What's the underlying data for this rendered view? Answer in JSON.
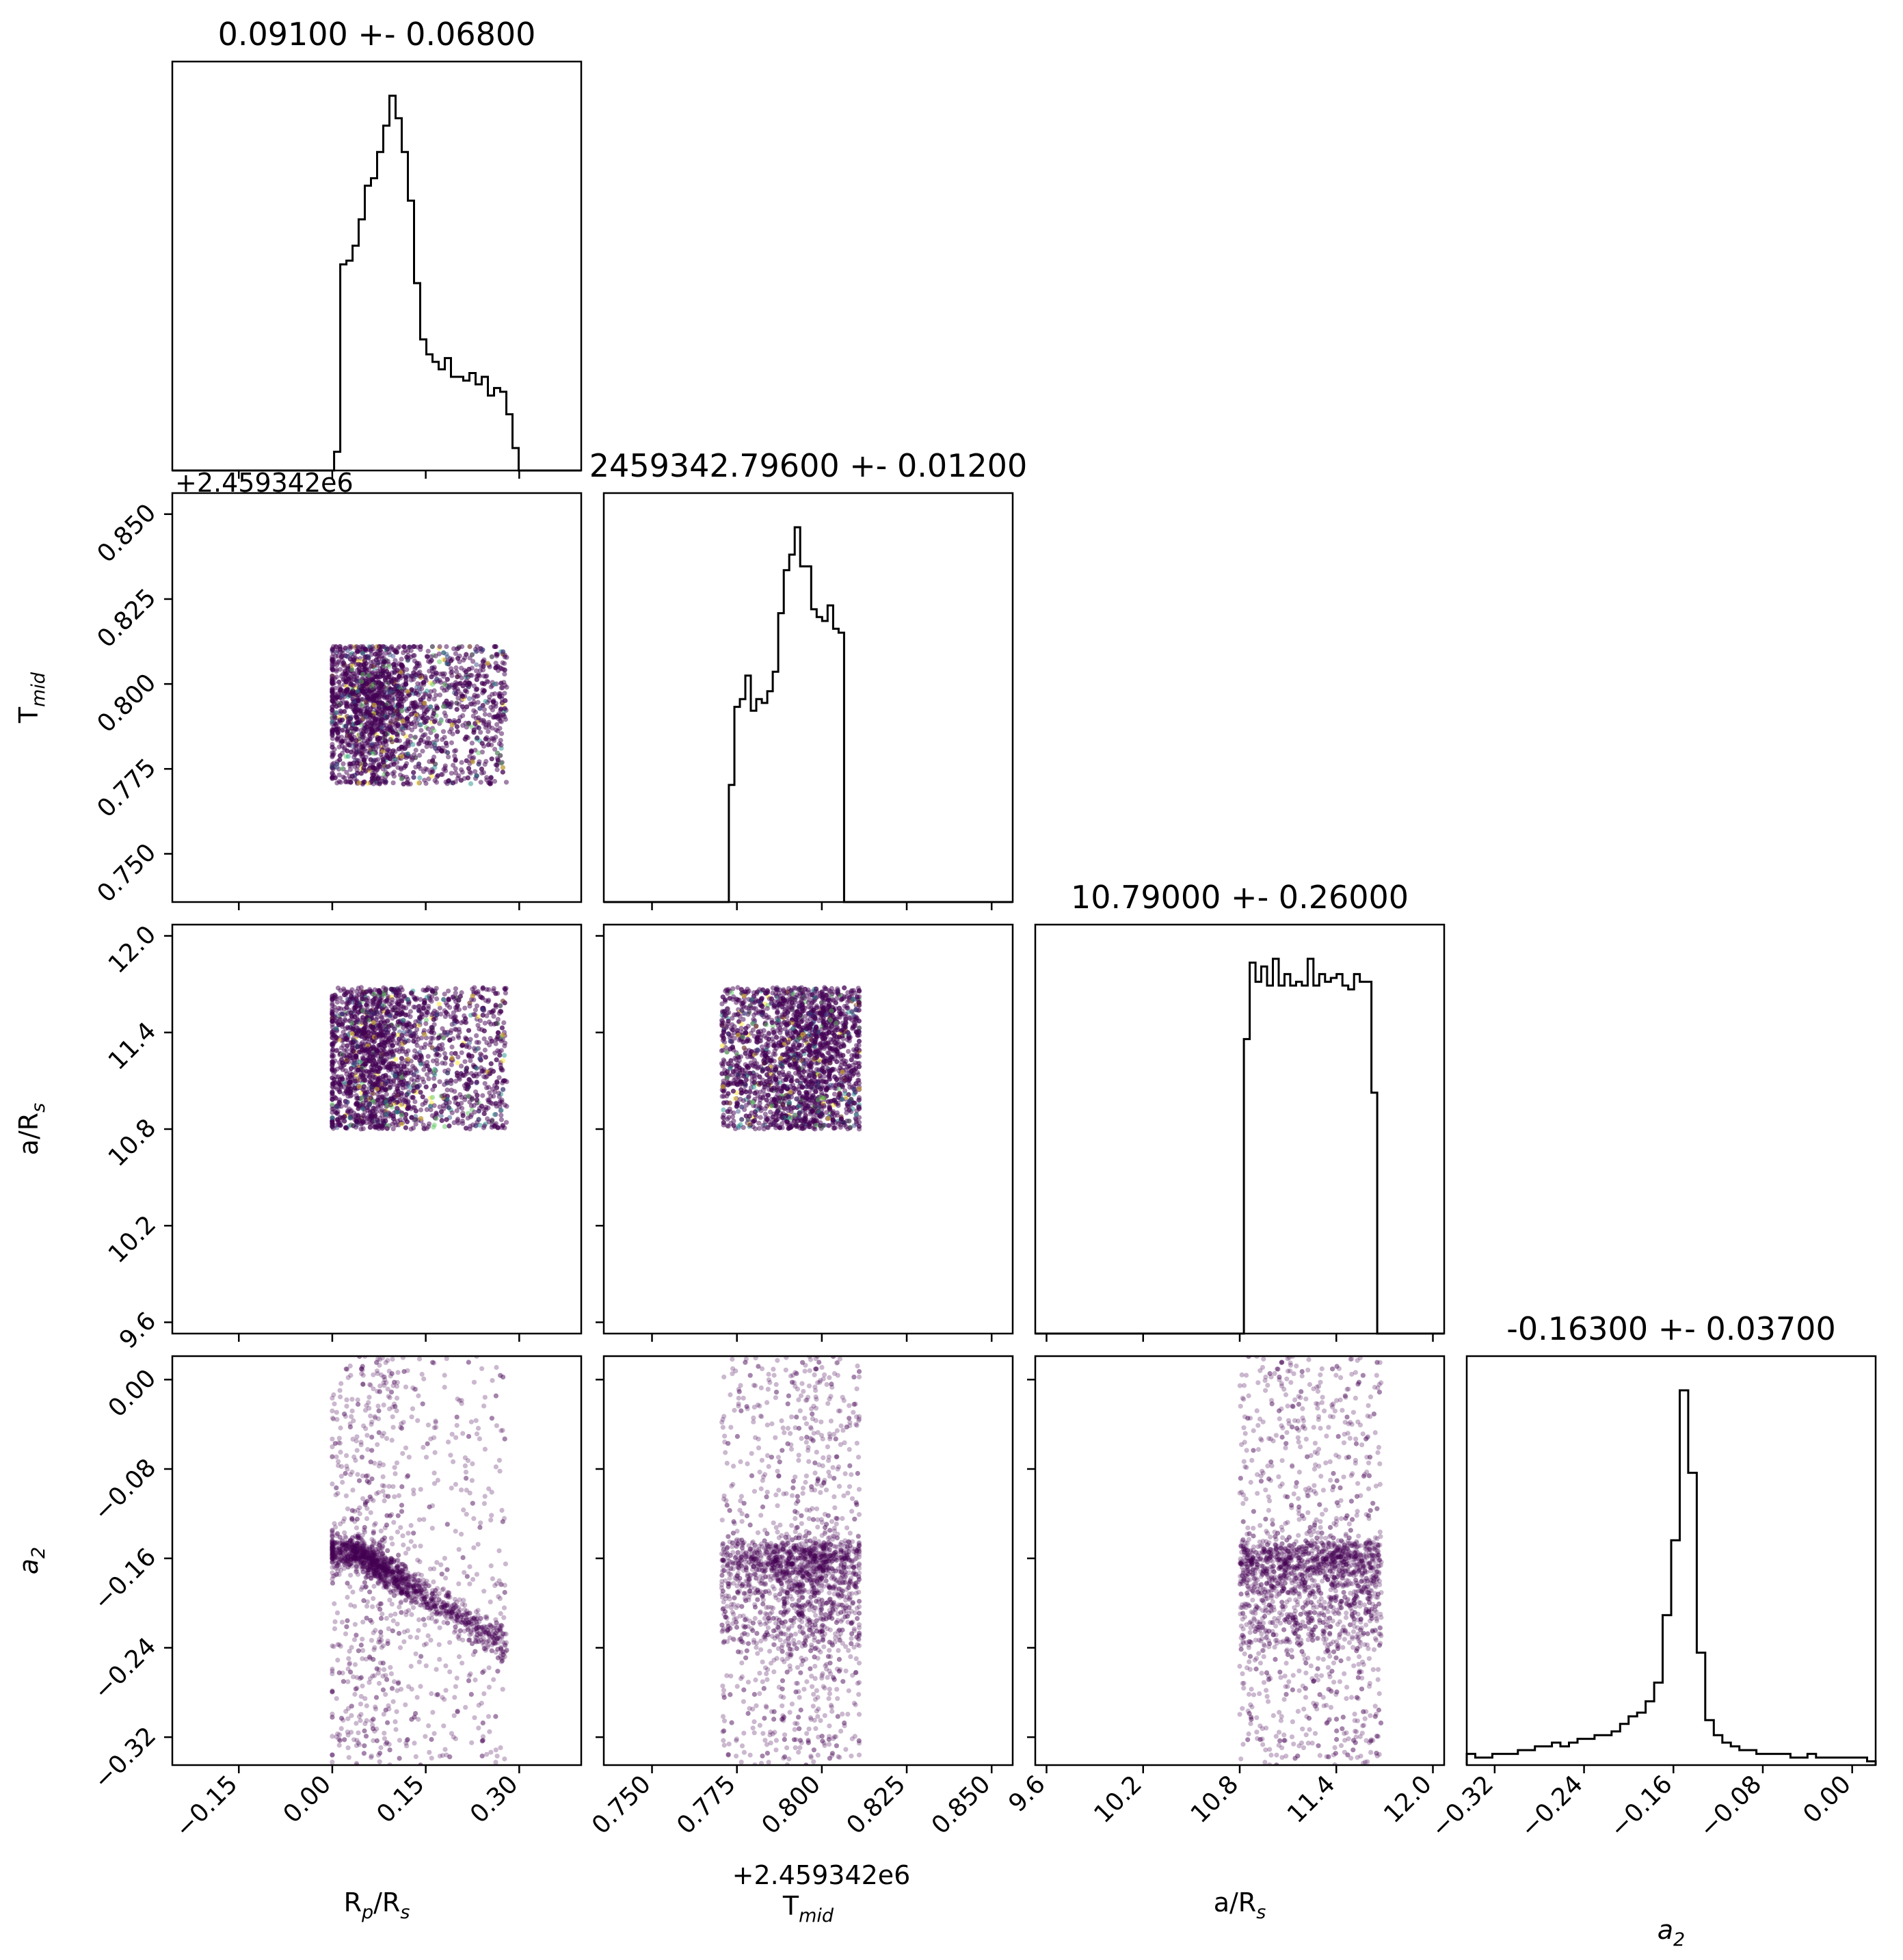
{
  "chart_data": {
    "type": "corner",
    "parameters": [
      {
        "key": "rp",
        "label": "R",
        "label_sub": "p",
        "label_mid": "/R",
        "label_sub2": "s",
        "title": "0.09100 +- 0.06800",
        "ticks": [
          "−0.15",
          "0.00",
          "0.15",
          "0.30"
        ],
        "tick_values": [
          -0.15,
          0.0,
          0.15,
          0.3
        ],
        "range": [
          -0.2567,
          0.3995
        ]
      },
      {
        "key": "tmid",
        "label": "T",
        "label_sub": "mid",
        "label_mid": "",
        "label_sub2": "",
        "title": "2459342.79600 +- 0.01200",
        "ticks": [
          "0.750",
          "0.775",
          "0.800",
          "0.825",
          "0.850"
        ],
        "tick_values": [
          0.75,
          0.775,
          0.8,
          0.825,
          0.85
        ],
        "range": [
          0.7358,
          0.8562
        ],
        "offset": "+2.459342e6"
      },
      {
        "key": "ars",
        "label": "a/R",
        "label_sub": "s",
        "label_mid": "",
        "label_sub2": "",
        "title": "10.79000 +- 0.26000",
        "ticks": [
          "9.6",
          "10.2",
          "10.8",
          "11.4",
          "12.0"
        ],
        "tick_values": [
          9.6,
          10.2,
          10.8,
          11.4,
          12.0
        ],
        "range": [
          9.53,
          12.07
        ]
      },
      {
        "key": "a2",
        "label": "a",
        "label_sub": "2",
        "label_mid": "",
        "label_sub2": "",
        "title": "-0.16300 +- 0.03700",
        "ticks": [
          "−0.32",
          "−0.24",
          "−0.16",
          "−0.08",
          "0.00"
        ],
        "tick_values": [
          -0.32,
          -0.24,
          -0.16,
          -0.08,
          0.0
        ],
        "range": [
          -0.345,
          0.021
        ]
      }
    ],
    "histograms": {
      "rp": {
        "edges_range": [
          -0.007,
          0.309
        ],
        "counts": [
          0,
          5,
          55,
          56,
          60,
          67,
          76,
          78,
          85,
          92,
          100,
          94,
          85,
          72,
          50,
          35,
          31,
          29,
          27,
          30,
          25,
          25,
          24,
          26,
          23,
          25,
          20,
          22,
          21,
          15,
          6,
          0
        ]
      },
      "tmid": {
        "edges_range": [
          0.7694,
          0.8114
        ],
        "counts": [
          0,
          0,
          30,
          50,
          52,
          58,
          49,
          52,
          51,
          54,
          59,
          74,
          85,
          89,
          96,
          86,
          86,
          75,
          73,
          72,
          76,
          70,
          69,
          0,
          0,
          0
        ]
      },
      "ars": {
        "edges_range": [
          10.79,
          11.69
        ],
        "counts": [
          0,
          77,
          97,
          92,
          96,
          91,
          98,
          91,
          94,
          91,
          92,
          91,
          98,
          91,
          94,
          92,
          93,
          94,
          91,
          90,
          94,
          92,
          92,
          63,
          0
        ]
      },
      "a2": {
        "edges_range": [
          -0.345,
          0.021
        ],
        "counts": [
          3,
          2,
          2,
          3,
          3,
          3,
          4,
          4,
          5,
          5,
          6,
          5,
          6,
          7,
          7,
          8,
          8,
          9,
          11,
          13,
          14,
          17,
          22,
          40,
          60,
          100,
          78,
          30,
          12,
          8,
          6,
          5,
          4,
          4,
          3,
          3,
          3,
          3,
          2,
          2,
          3,
          2,
          2,
          2,
          2,
          2,
          2,
          1
        ]
      }
    },
    "grid": false,
    "colors": {
      "hist": "#000000",
      "scatter": "#440154",
      "scatter_alt": [
        "#3b528b",
        "#21918c",
        "#5ec962",
        "#fde725"
      ]
    }
  }
}
